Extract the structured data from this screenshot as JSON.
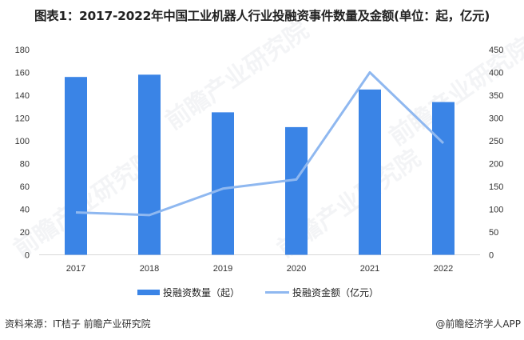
{
  "title": "图表1：2017-2022年中国工业机器人行业投融资事件数量及金额(单位：起，亿元)",
  "legend": {
    "bar_label": "投融资数量（起）",
    "line_label": "投融资金额（亿元）"
  },
  "footer": {
    "source": "资料来源：IT桔子 前瞻产业研究院",
    "credit": "@前瞻经济学人APP"
  },
  "watermark_text": "前瞻产业研究院",
  "colors": {
    "bar": "#3a84e6",
    "line": "#8fb8f0",
    "axis": "#d9d9d9"
  },
  "chart_data": {
    "type": "bar+line",
    "title": "2017-2022年中国工业机器人行业投融资事件数量及金额(单位：起，亿元)",
    "categories": [
      "2017",
      "2018",
      "2019",
      "2020",
      "2021",
      "2022"
    ],
    "series": [
      {
        "name": "投融资数量（起）",
        "type": "bar",
        "axis": "left",
        "values": [
          156,
          158,
          125,
          112,
          145,
          134
        ]
      },
      {
        "name": "投融资金额（亿元）",
        "type": "line",
        "axis": "right",
        "values": [
          93,
          87,
          145,
          165,
          400,
          245
        ]
      }
    ],
    "y_left": {
      "ylim": [
        0,
        180
      ],
      "ticks": [
        0,
        20,
        40,
        60,
        80,
        100,
        120,
        140,
        160,
        180
      ]
    },
    "y_right": {
      "ylim": [
        0,
        450
      ],
      "ticks": [
        0,
        50,
        100,
        150,
        200,
        250,
        300,
        350,
        400,
        450
      ]
    },
    "xlabel": "",
    "grid": false,
    "legend_position": "bottom"
  }
}
